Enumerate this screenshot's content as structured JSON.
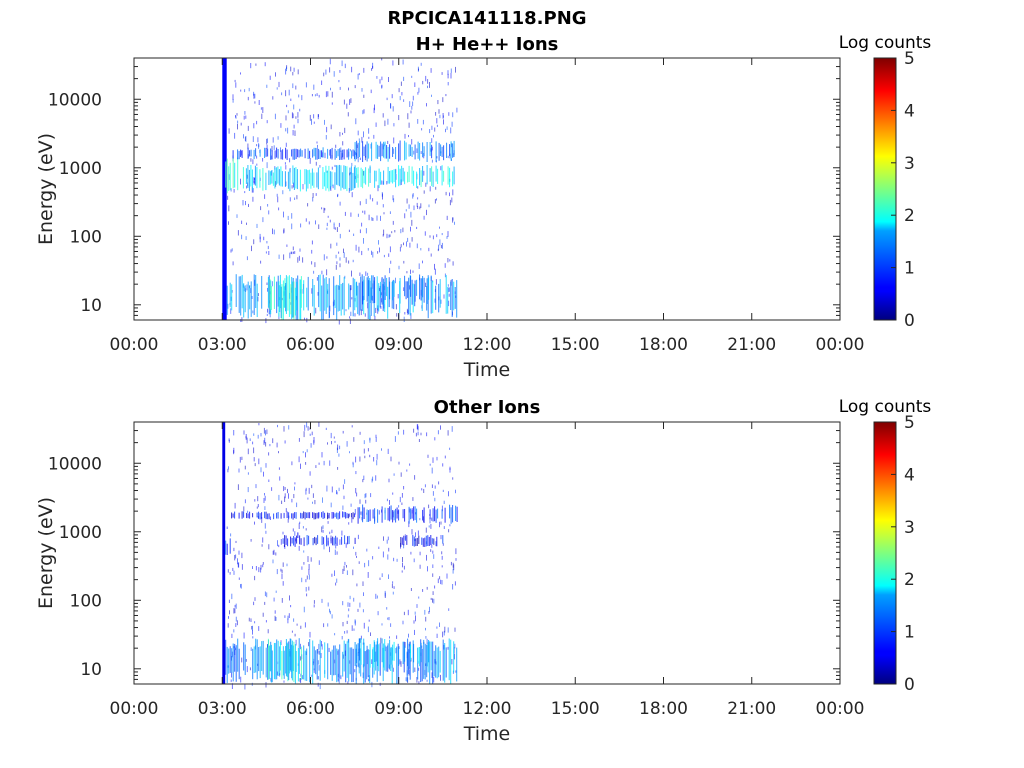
{
  "figure_title": "RPCICA141118.PNG",
  "chart_data": [
    {
      "type": "heatmap",
      "title": "H+ He++ Ions",
      "xlabel": "Time",
      "ylabel": "Energy (eV)",
      "x_ticks": [
        "00:00",
        "03:00",
        "06:00",
        "09:00",
        "12:00",
        "15:00",
        "18:00",
        "21:00",
        "00:00"
      ],
      "y_ticks": [
        "10",
        "100",
        "1000",
        "10000"
      ],
      "y_scale": "log",
      "ylim": [
        6,
        40000
      ],
      "colorbar": {
        "label": "Log counts",
        "ticks": [
          "0",
          "1",
          "2",
          "3",
          "4",
          "5"
        ],
        "range": [
          0,
          5
        ],
        "colormap": "jet"
      },
      "data_span_hours": [
        3.0,
        11.0
      ],
      "bands": [
        {
          "hours": [
            3.0,
            3.15
          ],
          "energy": [
            6,
            40000
          ],
          "log_counts": 0.6
        },
        {
          "hours": [
            3.1,
            3.6
          ],
          "energy": [
            400,
            1500
          ],
          "log_counts": 2.1
        },
        {
          "hours": [
            3.6,
            7.5
          ],
          "energy": [
            450,
            1100
          ],
          "log_counts": 1.7
        },
        {
          "hours": [
            3.3,
            7.5
          ],
          "energy": [
            1300,
            2000
          ],
          "log_counts": 1.0
        },
        {
          "hours": [
            7.5,
            11.0
          ],
          "energy": [
            1200,
            2500
          ],
          "log_counts": 1.2
        },
        {
          "hours": [
            7.5,
            11.0
          ],
          "energy": [
            500,
            1100
          ],
          "log_counts": 1.8
        },
        {
          "hours": [
            3.1,
            11.0
          ],
          "energy": [
            6,
            28
          ],
          "log_counts": 1.4
        },
        {
          "hours": [
            4.5,
            5.7
          ],
          "energy": [
            6,
            28
          ],
          "log_counts": 2.0
        },
        {
          "hours": [
            7.5,
            10.0
          ],
          "energy": [
            10,
            28
          ],
          "log_counts": 1.3
        }
      ]
    },
    {
      "type": "heatmap",
      "title": "Other Ions",
      "xlabel": "Time",
      "ylabel": "Energy (eV)",
      "x_ticks": [
        "00:00",
        "03:00",
        "06:00",
        "09:00",
        "12:00",
        "15:00",
        "18:00",
        "21:00",
        "00:00"
      ],
      "y_ticks": [
        "10",
        "100",
        "1000",
        "10000"
      ],
      "y_scale": "log",
      "ylim": [
        6,
        40000
      ],
      "colorbar": {
        "label": "Log counts",
        "ticks": [
          "0",
          "1",
          "2",
          "3",
          "4",
          "5"
        ],
        "range": [
          0,
          5
        ],
        "colormap": "jet"
      },
      "data_span_hours": [
        3.0,
        11.0
      ],
      "bands": [
        {
          "hours": [
            3.0,
            3.1
          ],
          "energy": [
            6,
            40000
          ],
          "log_counts": 0.5
        },
        {
          "hours": [
            3.1,
            3.3
          ],
          "energy": [
            400,
            800
          ],
          "log_counts": 0.8
        },
        {
          "hours": [
            3.3,
            7.5
          ],
          "energy": [
            1500,
            2000
          ],
          "log_counts": 0.6
        },
        {
          "hours": [
            5.0,
            7.5
          ],
          "energy": [
            600,
            900
          ],
          "log_counts": 0.7
        },
        {
          "hours": [
            7.5,
            11.0
          ],
          "energy": [
            1300,
            2500
          ],
          "log_counts": 0.9
        },
        {
          "hours": [
            9.0,
            10.5
          ],
          "energy": [
            600,
            900
          ],
          "log_counts": 0.6
        },
        {
          "hours": [
            3.1,
            11.0
          ],
          "energy": [
            6,
            28
          ],
          "log_counts": 1.3
        },
        {
          "hours": [
            4.5,
            5.7
          ],
          "energy": [
            6,
            28
          ],
          "log_counts": 1.9
        },
        {
          "hours": [
            7.5,
            10.0
          ],
          "energy": [
            10,
            28
          ],
          "log_counts": 1.5
        }
      ]
    }
  ]
}
